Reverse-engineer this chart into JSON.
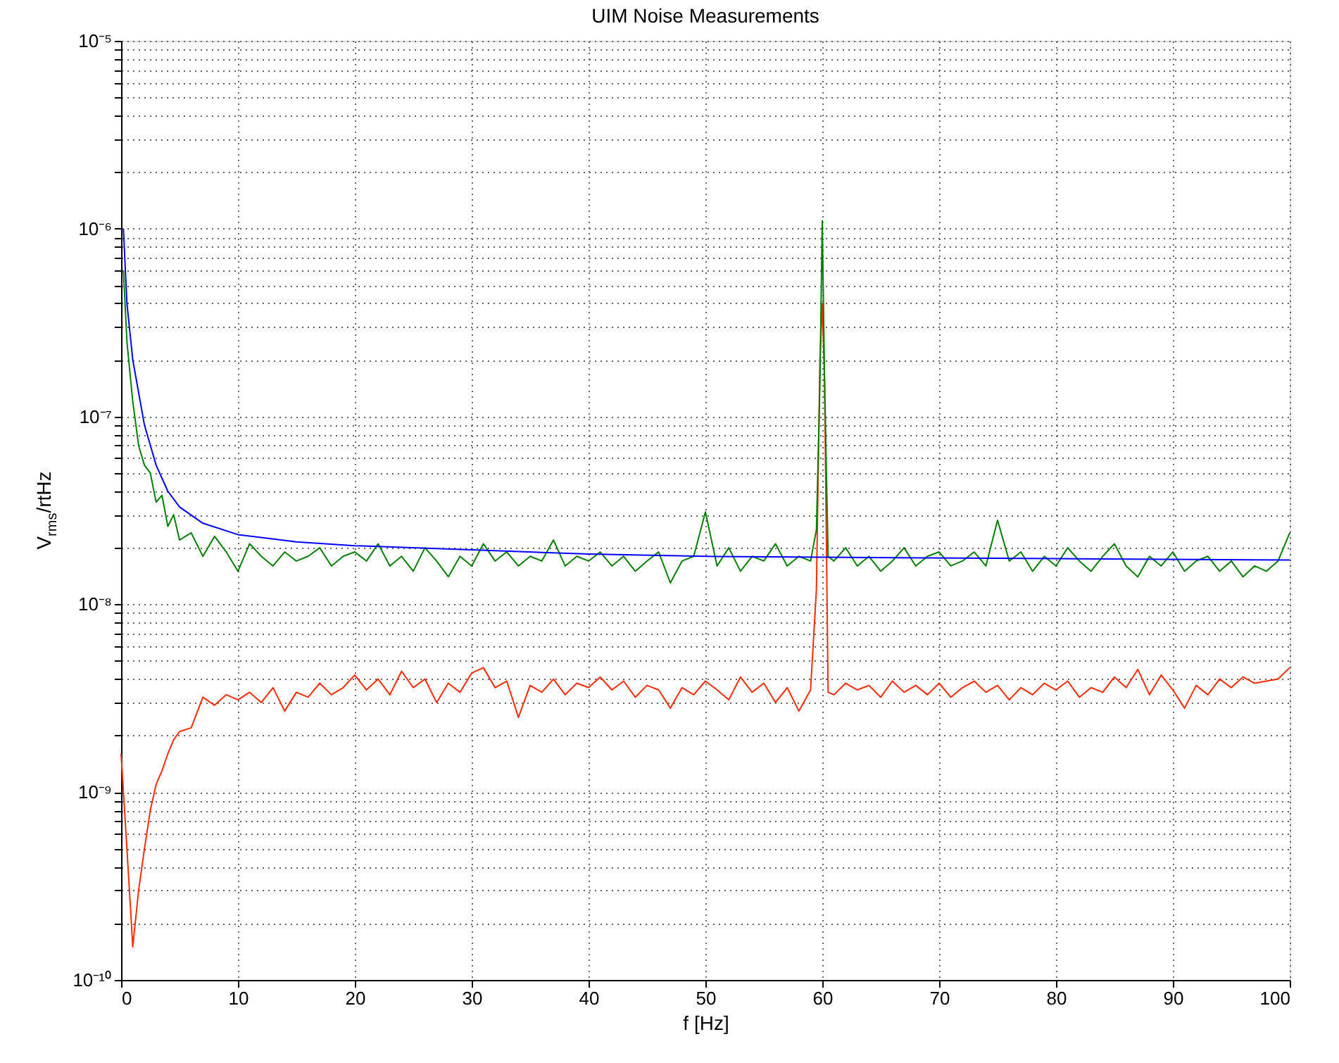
{
  "chart_data": {
    "type": "line",
    "title": "UIM Noise Measurements",
    "xlabel": "f [Hz]",
    "ylabel": "V$_{rms}$/rtHz",
    "log": "y",
    "grid": true,
    "line_style": "solid",
    "marker": "none",
    "xlim": [
      0,
      100
    ],
    "xticks": [
      0,
      10,
      20,
      30,
      40,
      50,
      60,
      70,
      80,
      90,
      100
    ],
    "ylim": [
      1e-10,
      1e-05
    ],
    "yticks": [
      {
        "value": 1e-10,
        "label": "10⁻¹⁰"
      },
      {
        "value": 2e-10,
        "label": null
      },
      {
        "value": 3e-10,
        "label": null
      },
      {
        "value": 4e-10,
        "label": null
      },
      {
        "value": 5e-10,
        "label": null
      },
      {
        "value": 6e-10,
        "label": null
      },
      {
        "value": 7e-10,
        "label": null
      },
      {
        "value": 8e-10,
        "label": null
      },
      {
        "value": 9e-10,
        "label": null
      },
      {
        "value": 1e-09,
        "label": "10⁻⁹"
      },
      {
        "value": 2e-09,
        "label": null
      },
      {
        "value": 3e-09,
        "label": null
      },
      {
        "value": 4e-09,
        "label": null
      },
      {
        "value": 5e-09,
        "label": null
      },
      {
        "value": 6e-09,
        "label": null
      },
      {
        "value": 7e-09,
        "label": null
      },
      {
        "value": 8e-09,
        "label": null
      },
      {
        "value": 9e-09,
        "label": null
      },
      {
        "value": 1e-08,
        "label": "10⁻⁸"
      },
      {
        "value": 2e-08,
        "label": null
      },
      {
        "value": 3e-08,
        "label": null
      },
      {
        "value": 4e-08,
        "label": null
      },
      {
        "value": 5e-08,
        "label": null
      },
      {
        "value": 6e-08,
        "label": null
      },
      {
        "value": 7e-08,
        "label": null
      },
      {
        "value": 8e-08,
        "label": null
      },
      {
        "value": 9e-08,
        "label": null
      },
      {
        "value": 1e-07,
        "label": "10⁻⁷"
      },
      {
        "value": 2e-07,
        "label": null
      },
      {
        "value": 3e-07,
        "label": null
      },
      {
        "value": 4e-07,
        "label": null
      },
      {
        "value": 5e-07,
        "label": null
      },
      {
        "value": 6e-07,
        "label": null
      },
      {
        "value": 7e-07,
        "label": null
      },
      {
        "value": 8e-07,
        "label": null
      },
      {
        "value": 9e-07,
        "label": null
      },
      {
        "value": 1e-06,
        "label": "10⁻⁶"
      },
      {
        "value": 2e-06,
        "label": null
      },
      {
        "value": 3e-06,
        "label": null
      },
      {
        "value": 4e-06,
        "label": null
      },
      {
        "value": 5e-06,
        "label": null
      },
      {
        "value": 6e-06,
        "label": null
      },
      {
        "value": 7e-06,
        "label": null
      },
      {
        "value": 8e-06,
        "label": null
      },
      {
        "value": 9e-06,
        "label": null
      },
      {
        "value": 1e-05,
        "label": "10⁻⁵"
      }
    ],
    "series": [
      {
        "color": "#ff2a00",
        "x": [
          0,
          0.5,
          1,
          1.5,
          2,
          2.5,
          3,
          3.5,
          4,
          4.5,
          5,
          6,
          7,
          8,
          9,
          10,
          11,
          12,
          13,
          14,
          15,
          16,
          17,
          18,
          19,
          20,
          21,
          22,
          23,
          24,
          25,
          26,
          27,
          28,
          29,
          30,
          31,
          32,
          33,
          34,
          35,
          36,
          37,
          38,
          39,
          40,
          41,
          42,
          43,
          44,
          45,
          46,
          47,
          48,
          49,
          50,
          51,
          52,
          53,
          54,
          55,
          56,
          57,
          58,
          59,
          59.5,
          59.8,
          60,
          60.2,
          60.5,
          61,
          62,
          63,
          64,
          65,
          66,
          67,
          68,
          69,
          70,
          71,
          72,
          73,
          74,
          75,
          76,
          77,
          78,
          79,
          80,
          81,
          82,
          83,
          84,
          85,
          86,
          87,
          88,
          89,
          90,
          91,
          92,
          93,
          94,
          95,
          96,
          97,
          98,
          99,
          100
        ],
        "values": [
          1.6e-09,
          5e-10,
          1.5e-10,
          3e-10,
          5e-10,
          8e-10,
          1.1e-09,
          1.3e-09,
          1.6e-09,
          1.9e-09,
          2.1e-09,
          2.2e-09,
          3.2e-09,
          2.9e-09,
          3.3e-09,
          3.1e-09,
          3.4e-09,
          3e-09,
          3.6e-09,
          2.7e-09,
          3.4e-09,
          3.2e-09,
          3.8e-09,
          3.3e-09,
          3.6e-09,
          4.2e-09,
          3.5e-09,
          4e-09,
          3.3e-09,
          4.4e-09,
          3.6e-09,
          4e-09,
          3e-09,
          3.8e-09,
          3.4e-09,
          4.3e-09,
          4.6e-09,
          3.6e-09,
          3.9e-09,
          2.5e-09,
          3.7e-09,
          3.4e-09,
          4e-09,
          3.3e-09,
          3.8e-09,
          3.6e-09,
          4.1e-09,
          3.5e-09,
          3.9e-09,
          3.2e-09,
          3.7e-09,
          3.5e-09,
          2.8e-09,
          3.6e-09,
          3.3e-09,
          3.9e-09,
          3.5e-09,
          3.1e-09,
          4.1e-09,
          3.4e-09,
          3.8e-09,
          3e-09,
          3.6e-09,
          2.7e-09,
          3.5e-09,
          1.2e-08,
          2e-07,
          4e-07,
          1.5e-07,
          3.4e-09,
          3.3e-09,
          3.8e-09,
          3.5e-09,
          3.7e-09,
          3.2e-09,
          3.9e-09,
          3.4e-09,
          3.7e-09,
          3.3e-09,
          3.8e-09,
          3.2e-09,
          3.6e-09,
          3.9e-09,
          3.4e-09,
          3.7e-09,
          3.1e-09,
          3.6e-09,
          3.3e-09,
          3.8e-09,
          3.5e-09,
          3.9e-09,
          3.2e-09,
          3.6e-09,
          3.4e-09,
          4.1e-09,
          3.6e-09,
          4.5e-09,
          3.3e-09,
          4.2e-09,
          3.5e-09,
          2.8e-09,
          3.7e-09,
          3.3e-09,
          4e-09,
          3.6e-09,
          4.1e-09,
          3.8e-09,
          3.9e-09,
          4e-09,
          4.6e-09
        ]
      },
      {
        "color": "#008000",
        "x": [
          0.2,
          0.5,
          1,
          1.5,
          2,
          2.5,
          3,
          3.5,
          4,
          4.5,
          5,
          6,
          7,
          8,
          9,
          10,
          11,
          12,
          13,
          14,
          15,
          16,
          17,
          18,
          19,
          20,
          21,
          22,
          23,
          24,
          25,
          26,
          27,
          28,
          29,
          30,
          31,
          32,
          33,
          34,
          35,
          36,
          37,
          38,
          39,
          40,
          41,
          42,
          43,
          44,
          45,
          46,
          47,
          48,
          49,
          50,
          51,
          52,
          53,
          54,
          55,
          56,
          57,
          58,
          59,
          59.5,
          59.8,
          60,
          60.2,
          60.5,
          61,
          62,
          63,
          64,
          65,
          66,
          67,
          68,
          69,
          70,
          71,
          72,
          73,
          74,
          75,
          76,
          77,
          78,
          79,
          80,
          81,
          82,
          83,
          84,
          85,
          86,
          87,
          88,
          89,
          90,
          91,
          92,
          93,
          94,
          95,
          96,
          97,
          98,
          99,
          100
        ],
        "values": [
          6e-07,
          2.5e-07,
          1.2e-07,
          7e-08,
          5.5e-08,
          5e-08,
          3.5e-08,
          3.8e-08,
          2.6e-08,
          3e-08,
          2.2e-08,
          2.4e-08,
          1.8e-08,
          2.3e-08,
          1.9e-08,
          1.5e-08,
          2.1e-08,
          1.8e-08,
          1.6e-08,
          1.9e-08,
          1.7e-08,
          1.8e-08,
          2e-08,
          1.6e-08,
          1.8e-08,
          1.9e-08,
          1.7e-08,
          2.1e-08,
          1.6e-08,
          1.8e-08,
          1.5e-08,
          2e-08,
          1.7e-08,
          1.4e-08,
          1.8e-08,
          1.6e-08,
          2.1e-08,
          1.7e-08,
          1.9e-08,
          1.6e-08,
          1.8e-08,
          1.7e-08,
          2.2e-08,
          1.6e-08,
          1.8e-08,
          1.7e-08,
          1.9e-08,
          1.6e-08,
          1.8e-08,
          1.5e-08,
          1.7e-08,
          1.9e-08,
          1.3e-08,
          1.7e-08,
          1.8e-08,
          3.1e-08,
          1.6e-08,
          2e-08,
          1.5e-08,
          1.8e-08,
          1.7e-08,
          2.1e-08,
          1.6e-08,
          1.8e-08,
          1.7e-08,
          2.5e-08,
          1.5e-07,
          1.1e-06,
          1.5e-07,
          1.8e-08,
          1.7e-08,
          2e-08,
          1.6e-08,
          1.8e-08,
          1.5e-08,
          1.7e-08,
          2e-08,
          1.6e-08,
          1.8e-08,
          1.9e-08,
          1.6e-08,
          1.7e-08,
          1.9e-08,
          1.6e-08,
          2.8e-08,
          1.7e-08,
          1.9e-08,
          1.5e-08,
          1.8e-08,
          1.6e-08,
          2e-08,
          1.7e-08,
          1.5e-08,
          1.8e-08,
          2.1e-08,
          1.6e-08,
          1.4e-08,
          1.8e-08,
          1.6e-08,
          1.9e-08,
          1.5e-08,
          1.7e-08,
          1.8e-08,
          1.5e-08,
          1.7e-08,
          1.4e-08,
          1.6e-08,
          1.5e-08,
          1.7e-08,
          2.4e-08
        ]
      },
      {
        "color": "#0000ff",
        "x": [
          0.2,
          0.5,
          1,
          2,
          3,
          4,
          5,
          7,
          10,
          15,
          20,
          30,
          40,
          50,
          60,
          80,
          100
        ],
        "values": [
          1e-06,
          4e-07,
          2e-07,
          9e-08,
          5.5e-08,
          4e-08,
          3.3e-08,
          2.7e-08,
          2.35e-08,
          2.15e-08,
          2.05e-08,
          1.95e-08,
          1.85e-08,
          1.8e-08,
          1.78e-08,
          1.75e-08,
          1.72e-08
        ]
      }
    ]
  }
}
